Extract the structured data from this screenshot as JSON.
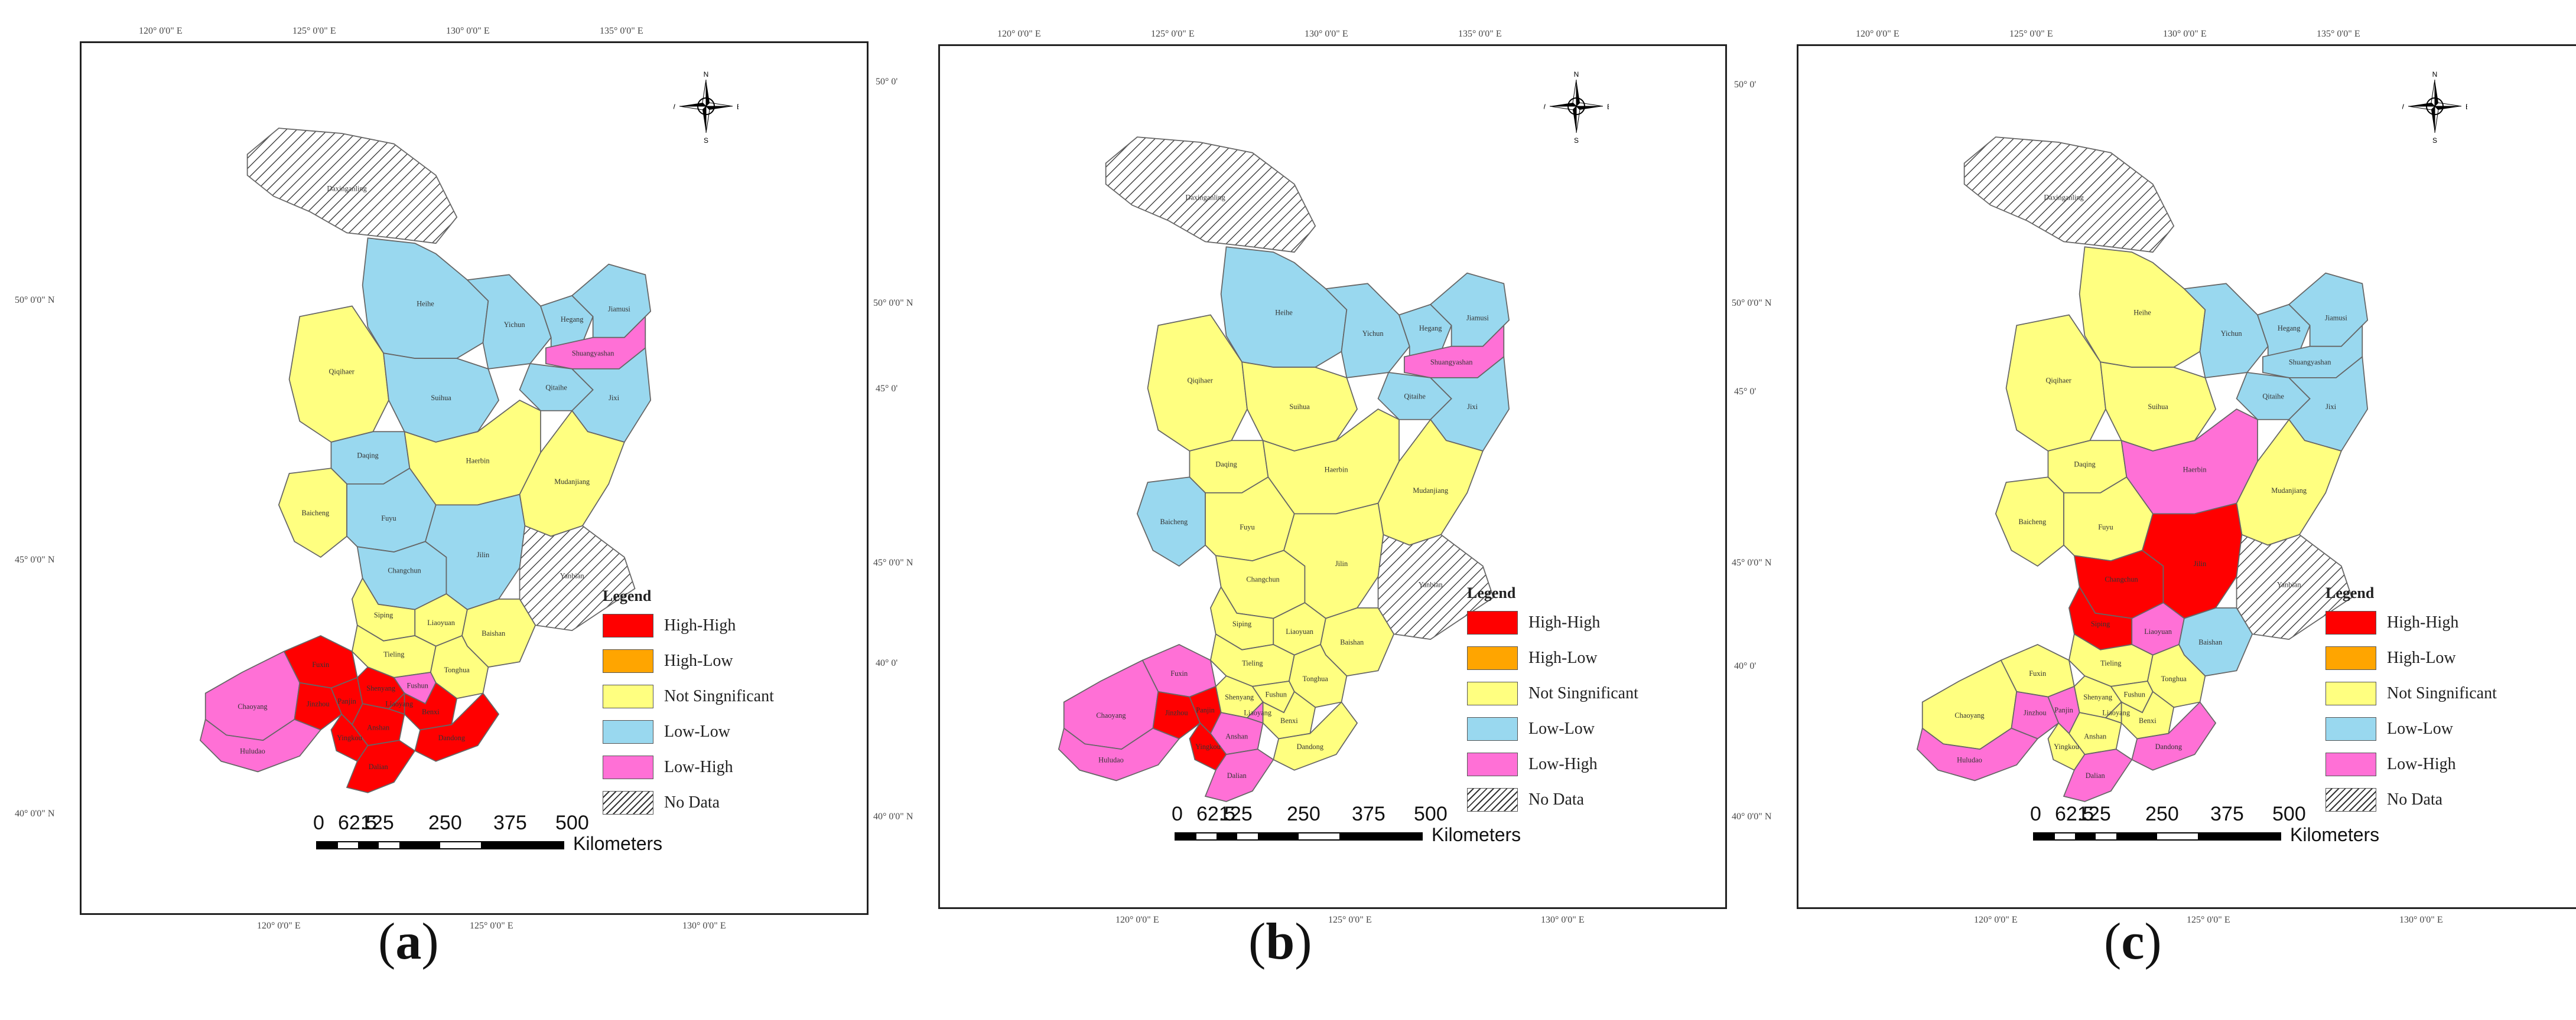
{
  "colors": {
    "high_high": "#ff0000",
    "high_low": "#ffa500",
    "not_significant": "#ffff80",
    "low_low": "#99d8ef",
    "low_high": "#ff70d6",
    "no_data": "hatched"
  },
  "legend": {
    "title": "Legend",
    "items": [
      {
        "key": "high_high",
        "label": "High-High"
      },
      {
        "key": "high_low",
        "label": "High-Low"
      },
      {
        "key": "not_significant",
        "label": "Not Singnificant"
      },
      {
        "key": "low_low",
        "label": "Low-Low"
      },
      {
        "key": "low_high",
        "label": "Low-High"
      },
      {
        "key": "no_data",
        "label": "No Data"
      }
    ]
  },
  "scale": {
    "ticks": [
      "0",
      "62.5",
      "125",
      "250",
      "375",
      "500"
    ],
    "unit": "Kilometers"
  },
  "north_arrow": {
    "n": "N",
    "s": "S",
    "e": "E",
    "w": "W"
  },
  "coords": {
    "top": [
      "120° 0'0\" E",
      "125° 0'0\" E",
      "130° 0'0\" E",
      "135° 0'0\" E"
    ],
    "bottom": [
      "120° 0'0\" E",
      "125° 0'0\" E",
      "130° 0'0\" E"
    ],
    "left": [
      "50° 0'0\" N",
      "45° 0'0\" N",
      "40° 0'0\" N"
    ],
    "right": [
      "50° 0'",
      "45° 0'",
      "40° 0'"
    ]
  },
  "panels": [
    {
      "caption": "a",
      "regions": {
        "Daxinganling": "no_data",
        "Heihe": "low_low",
        "Yichun": "low_low",
        "Hegang": "low_low",
        "Jiamusi": "low_low",
        "Shuangyashan": "low_high",
        "Qiqihaer": "not_significant",
        "Suihua": "low_low",
        "Qitaihe": "low_low",
        "Jixi": "low_low",
        "Daqing": "low_low",
        "Haerbin": "not_significant",
        "Mudanjiang": "not_significant",
        "Baicheng": "not_significant",
        "Songyuan": "low_low",
        "Changchun": "low_low",
        "Jilin": "low_low",
        "Yanbian": "no_data",
        "Siping": "not_significant",
        "Liaoyuan": "not_significant",
        "Baishan": "not_significant",
        "Tieling": "not_significant",
        "Tonghua": "not_significant",
        "Fuxin": "high_high",
        "Shenyang": "high_high",
        "Fushun": "low_high",
        "Benxi": "high_high",
        "Chaoyang": "low_high",
        "Jinzhou": "high_high",
        "Panjin": "high_high",
        "Anshan": "high_high",
        "Liaoyang": "high_high",
        "Dandong": "high_high",
        "Yingkou": "high_high",
        "Huludao": "low_high",
        "Dalian": "high_high"
      },
      "labels": {
        "Daxinganling": "Daxinganling",
        "Heihe": "Heihe",
        "Yichun": "Yichun",
        "Hegang": "Hegang",
        "Jiamusi": "Jiamusi",
        "Shuangyashan": "Shuangyashan",
        "Qiqihaer": "Qiqihaer",
        "Suihua": "Suihua",
        "Qitaihe": "Qitaihe",
        "Jixi": "Jixi",
        "Daqing": "Daqing",
        "Haerbin": "Haerbin",
        "Mudanjiang": "Mudanjiang",
        "Baicheng": "Baicheng",
        "Songyuan": "Fuyu",
        "Changchun": "Changchun",
        "Jilin": "Jilin",
        "Yanbian": "Yanbian",
        "Siping": "Siping",
        "Liaoyuan": "Liaoyuan",
        "Baishan": "Baishan",
        "Tieling": "Tieling",
        "Tonghua": "Tonghua",
        "Fuxin": "Fuxin",
        "Shenyang": "Shenyang",
        "Fushun": "Fushun",
        "Benxi": "Benxi",
        "Chaoyang": "Chaoyang",
        "Jinzhou": "Jinzhou",
        "Panjin": "Panjin",
        "Anshan": "Anshan",
        "Liaoyang": "Liaoyang",
        "Dandong": "Dandong",
        "Yingkou": "Yingkou",
        "Huludao": "Huludao",
        "Dalian": "Dalian"
      }
    },
    {
      "caption": "b",
      "regions": {
        "Daxinganling": "no_data",
        "Heihe": "low_low",
        "Yichun": "low_low",
        "Hegang": "low_low",
        "Jiamusi": "low_low",
        "Shuangyashan": "low_high",
        "Qiqihaer": "not_significant",
        "Suihua": "not_significant",
        "Qitaihe": "low_low",
        "Jixi": "low_low",
        "Daqing": "not_significant",
        "Haerbin": "not_significant",
        "Mudanjiang": "not_significant",
        "Baicheng": "low_low",
        "Songyuan": "not_significant",
        "Changchun": "not_significant",
        "Jilin": "not_significant",
        "Yanbian": "no_data",
        "Siping": "not_significant",
        "Liaoyuan": "not_significant",
        "Baishan": "not_significant",
        "Tieling": "not_significant",
        "Tonghua": "not_significant",
        "Fuxin": "low_high",
        "Shenyang": "not_significant",
        "Fushun": "not_significant",
        "Benxi": "not_significant",
        "Chaoyang": "low_high",
        "Jinzhou": "high_high",
        "Panjin": "high_high",
        "Anshan": "low_high",
        "Liaoyang": "low_high",
        "Dandong": "not_significant",
        "Yingkou": "high_high",
        "Huludao": "low_high",
        "Dalian": "low_high"
      },
      "labels": {
        "Daxinganling": "Daxinganling",
        "Heihe": "Heihe",
        "Yichun": "Yichun",
        "Hegang": "Hegang",
        "Jiamusi": "Jiamusi",
        "Shuangyashan": "Shuangyashan",
        "Qiqihaer": "Qiqihaer",
        "Suihua": "Suihua",
        "Qitaihe": "Qitaihe",
        "Jixi": "Jixi",
        "Daqing": "Daqing",
        "Haerbin": "Haerbin",
        "Mudanjiang": "Mudanjiang",
        "Baicheng": "Baicheng",
        "Songyuan": "Fuyu",
        "Changchun": "Changchun",
        "Jilin": "Jilin",
        "Yanbian": "Yanbian",
        "Siping": "Siping",
        "Liaoyuan": "Liaoyuan",
        "Baishan": "Baishan",
        "Tieling": "Tieling",
        "Tonghua": "Tonghua",
        "Fuxin": "Fuxin",
        "Shenyang": "Shenyang",
        "Fushun": "Fushun",
        "Benxi": "Benxi",
        "Chaoyang": "Chaoyang",
        "Jinzhou": "Jinzhou",
        "Panjin": "Panjin",
        "Anshan": "Anshan",
        "Liaoyang": "Liaoyang",
        "Dandong": "Dandong",
        "Yingkou": "Yingkou",
        "Huludao": "Huludao",
        "Dalian": "Dalian"
      }
    },
    {
      "caption": "c",
      "regions": {
        "Daxinganling": "no_data",
        "Heihe": "not_significant",
        "Yichun": "low_low",
        "Hegang": "low_low",
        "Jiamusi": "low_low",
        "Shuangyashan": "low_low",
        "Qiqihaer": "not_significant",
        "Suihua": "not_significant",
        "Qitaihe": "low_low",
        "Jixi": "low_low",
        "Daqing": "not_significant",
        "Haerbin": "low_high",
        "Mudanjiang": "not_significant",
        "Baicheng": "not_significant",
        "Songyuan": "not_significant",
        "Changchun": "high_high",
        "Jilin": "high_high",
        "Yanbian": "no_data",
        "Siping": "high_high",
        "Liaoyuan": "low_high",
        "Baishan": "low_low",
        "Tieling": "not_significant",
        "Tonghua": "not_significant",
        "Fuxin": "not_significant",
        "Shenyang": "not_significant",
        "Fushun": "not_significant",
        "Benxi": "not_significant",
        "Chaoyang": "not_significant",
        "Jinzhou": "low_high",
        "Panjin": "low_high",
        "Anshan": "not_significant",
        "Liaoyang": "not_significant",
        "Dandong": "low_high",
        "Yingkou": "not_significant",
        "Huludao": "low_high",
        "Dalian": "low_high"
      },
      "labels": {
        "Daxinganling": "Daxinganling",
        "Heihe": "Heihe",
        "Yichun": "Yichun",
        "Hegang": "Hegang",
        "Jiamusi": "Jiamusi",
        "Shuangyashan": "Shuangyashan",
        "Qiqihaer": "Qiqihaer",
        "Suihua": "Suihua",
        "Qitaihe": "Qitaihe",
        "Jixi": "Jixi",
        "Daqing": "Daqing",
        "Haerbin": "Haerbin",
        "Mudanjiang": "Mudanjiang",
        "Baicheng": "Baicheng",
        "Songyuan": "Fuyu",
        "Changchun": "Changchun",
        "Jilin": "Jilin",
        "Yanbian": "Yanbian",
        "Siping": "Siping",
        "Liaoyuan": "Liaoyuan",
        "Baishan": "Baishan",
        "Tieling": "Tieling",
        "Tonghua": "Tonghua",
        "Fuxin": "Fuxin",
        "Shenyang": "Shenyang",
        "Fushun": "Fushun",
        "Benxi": "Benxi",
        "Chaoyang": "Chaoyang",
        "Jinzhou": "Jinzhou",
        "Panjin": "Panjin",
        "Anshan": "Anshan",
        "Liaoyang": "Liaoyang",
        "Dandong": "Dandong",
        "Yingkou": "Yingkou",
        "Huludao": "Huludao",
        "Dalian": "Dalian"
      }
    }
  ]
}
